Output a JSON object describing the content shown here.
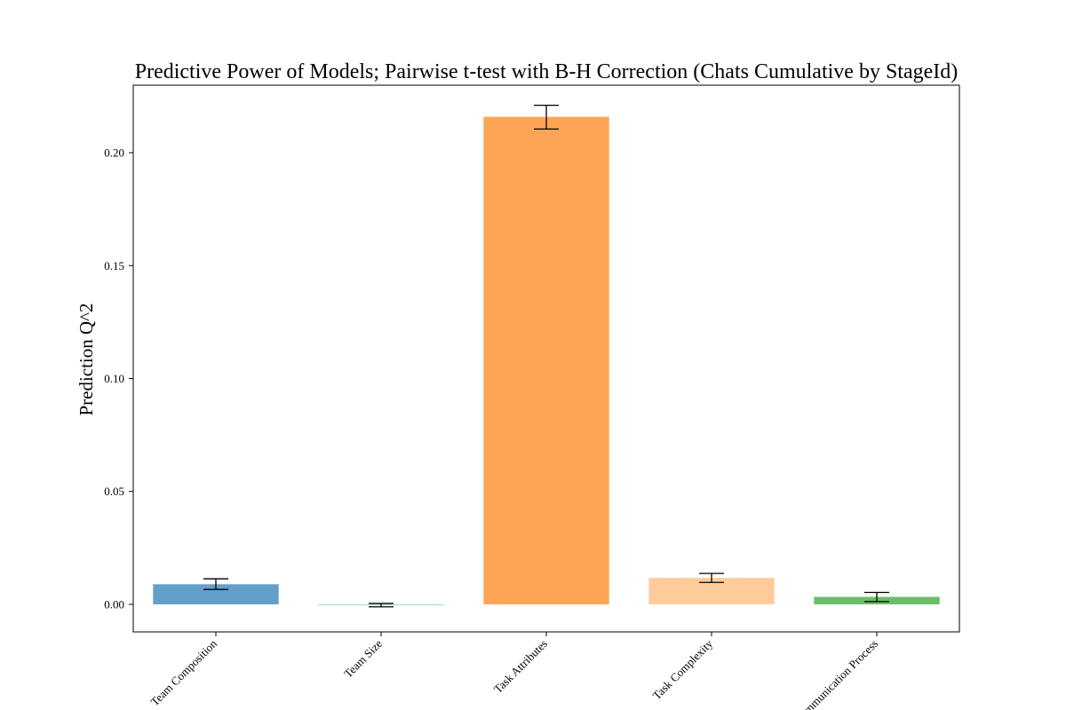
{
  "chart_data": {
    "type": "bar",
    "title": "Predictive Power of Models; Pairwise t-test with B-H Correction (Chats Cumulative by StageId)",
    "xlabel": "",
    "ylabel": "Prediction Q^2",
    "categories": [
      "Team Composition",
      "Team Size",
      "Task Attributes",
      "Task Complexity",
      "Communication Process"
    ],
    "values": [
      0.0089,
      -0.0003,
      0.2159,
      0.0117,
      0.0033
    ],
    "error_low": [
      0.0066,
      -0.0011,
      0.2105,
      0.0097,
      0.0012
    ],
    "error_high": [
      0.0113,
      0.0004,
      0.221,
      0.0137,
      0.0053
    ],
    "colors": [
      "#62a0ca",
      "#9fd6cf",
      "#fea555",
      "#ffcb9a",
      "#6bbd6a"
    ],
    "ylim": [
      -0.0122,
      0.2299
    ],
    "yticks": [
      0.0,
      0.05,
      0.1,
      0.15,
      0.2
    ],
    "ytick_labels": [
      "0.00",
      "0.05",
      "0.10",
      "0.15",
      "0.20"
    ],
    "grid": false,
    "legend": "none"
  }
}
